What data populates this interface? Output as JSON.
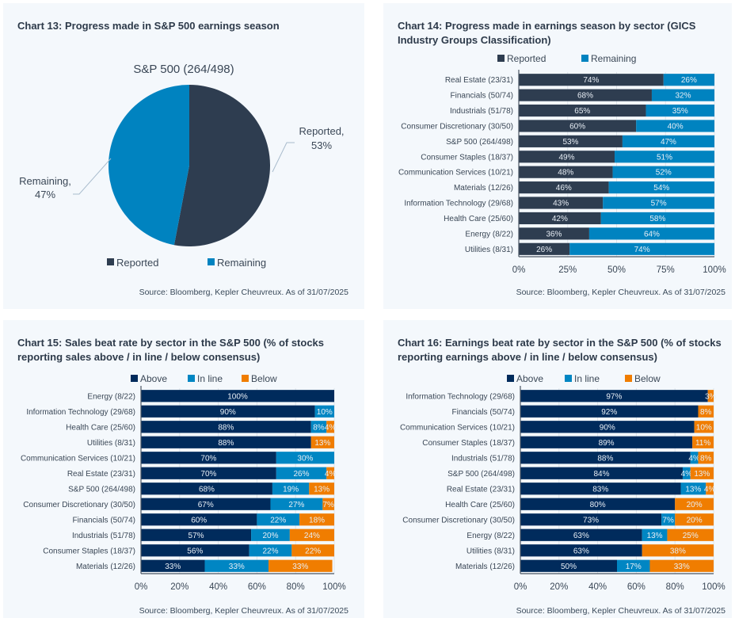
{
  "colors": {
    "reported": "#2e3d50",
    "remaining": "#0083c0",
    "above": "#002b5c",
    "inline": "#0086c3",
    "below": "#f07d00",
    "grid": "#dde3ea",
    "axis": "#4a5663",
    "panel_bg": "#f4f8fc"
  },
  "chart_data": [
    {
      "id": "chart13",
      "type": "pie",
      "title": "Chart 13: Progress made in S&P 500 earnings season",
      "subtitle": "S&P 500 (264/498)",
      "slices": [
        {
          "name": "Reported",
          "value": 53,
          "label": "Reported,",
          "value_label": "53%",
          "color_key": "reported"
        },
        {
          "name": "Remaining",
          "value": 47,
          "label": "Remaining,",
          "value_label": "47%",
          "color_key": "remaining"
        }
      ],
      "legend": [
        "Reported",
        "Remaining"
      ],
      "legend_position": "bottom",
      "source": "Source: Bloomberg, Kepler Cheuvreux. As of 31/07/2025"
    },
    {
      "id": "chart14",
      "type": "bar",
      "orientation": "horizontal",
      "stacked": true,
      "title": "Chart 14: Progress made in earnings season by sector (GICS Industry Groups Classification)",
      "categories": [
        "Real Estate (23/31)",
        "Financials (50/74)",
        "Industrials (51/78)",
        "Consumer Discretionary (30/50)",
        "S&P 500 (264/498)",
        "Consumer Staples (18/37)",
        "Communication Services (10/21)",
        "Materials (12/26)",
        "Information Technology (29/68)",
        "Health Care (25/60)",
        "Energy (8/22)",
        "Utilities (8/31)"
      ],
      "series": [
        {
          "name": "Reported",
          "color_key": "reported",
          "values": [
            74,
            68,
            65,
            60,
            53,
            49,
            48,
            46,
            43,
            42,
            36,
            26
          ]
        },
        {
          "name": "Remaining",
          "color_key": "remaining",
          "values": [
            26,
            32,
            35,
            40,
            47,
            51,
            52,
            54,
            57,
            58,
            64,
            74
          ]
        }
      ],
      "xlim": [
        0,
        100
      ],
      "xticks": [
        "0%",
        "25%",
        "50%",
        "75%",
        "100%"
      ],
      "xtick_values": [
        0,
        25,
        50,
        75,
        100
      ],
      "grid": true,
      "legend_position": "top",
      "source": "Source: Bloomberg, Kepler Cheuvreux. As of 31/07/2025"
    },
    {
      "id": "chart15",
      "type": "bar",
      "orientation": "horizontal",
      "stacked": true,
      "title": "Chart 15: Sales beat rate by sector in the S&P 500 (% of stocks reporting sales above / in line / below consensus)",
      "categories": [
        "Energy (8/22)",
        "Information Technology (29/68)",
        "Health Care (25/60)",
        "Utilities (8/31)",
        "Communication Services (10/21)",
        "Real Estate (23/31)",
        "S&P 500 (264/498)",
        "Consumer Discretionary (30/50)",
        "Financials (50/74)",
        "Industrials (51/78)",
        "Consumer Staples (18/37)",
        "Materials (12/26)"
      ],
      "series": [
        {
          "name": "Above",
          "color_key": "above",
          "values": [
            100,
            90,
            88,
            88,
            70,
            70,
            68,
            67,
            60,
            57,
            56,
            33
          ]
        },
        {
          "name": "In line",
          "color_key": "inline",
          "values": [
            0,
            10,
            8,
            0,
            30,
            26,
            19,
            27,
            22,
            20,
            22,
            33
          ]
        },
        {
          "name": "Below",
          "color_key": "below",
          "values": [
            0,
            0,
            4,
            13,
            0,
            4,
            13,
            7,
            18,
            24,
            22,
            33
          ]
        }
      ],
      "xlim": [
        0,
        100
      ],
      "xticks": [
        "0%",
        "20%",
        "40%",
        "60%",
        "80%",
        "100%"
      ],
      "xtick_values": [
        0,
        20,
        40,
        60,
        80,
        100
      ],
      "grid": true,
      "legend_position": "top",
      "source": "Source: Bloomberg, Kepler Cheuvreux. As of 31/07/2025"
    },
    {
      "id": "chart16",
      "type": "bar",
      "orientation": "horizontal",
      "stacked": true,
      "title": "Chart 16: Earnings beat rate by sector in the S&P 500 (% of stocks reporting earnings above / in line / below consensus)",
      "categories": [
        "Information Technology (29/68)",
        "Financials (50/74)",
        "Communication Services (10/21)",
        "Consumer Staples (18/37)",
        "Industrials (51/78)",
        "S&P 500 (264/498)",
        "Real Estate (23/31)",
        "Health Care (25/60)",
        "Consumer Discretionary (30/50)",
        "Energy (8/22)",
        "Utilities (8/31)",
        "Materials (12/26)"
      ],
      "series": [
        {
          "name": "Above",
          "color_key": "above",
          "values": [
            97,
            92,
            90,
            89,
            88,
            84,
            83,
            80,
            73,
            63,
            63,
            50
          ]
        },
        {
          "name": "In line",
          "color_key": "inline",
          "values": [
            0,
            0,
            0,
            0,
            4,
            4,
            13,
            0,
            7,
            13,
            0,
            17
          ]
        },
        {
          "name": "Below",
          "color_key": "below",
          "values": [
            3,
            8,
            10,
            11,
            8,
            13,
            4,
            20,
            20,
            25,
            38,
            33
          ]
        }
      ],
      "xlim": [
        0,
        100
      ],
      "xticks": [
        "0%",
        "20%",
        "40%",
        "60%",
        "80%",
        "100%"
      ],
      "xtick_values": [
        0,
        20,
        40,
        60,
        80,
        100
      ],
      "grid": true,
      "legend_position": "top",
      "source": "Source: Bloomberg, Kepler Cheuvreux. As of 31/07/2025"
    }
  ]
}
